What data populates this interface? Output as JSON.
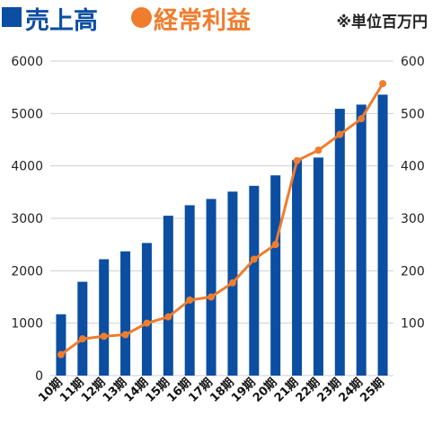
{
  "legend": {
    "sales_label": "売上高",
    "profit_label": "経常利益",
    "unit_note": "※単位百万円"
  },
  "colors": {
    "sales": "#0b4ea2",
    "profit": "#ef7d2d",
    "grid": "#cfcfcf"
  },
  "chart_data": {
    "type": "bar",
    "categories": [
      "10期",
      "11期",
      "12期",
      "13期",
      "14期",
      "15期",
      "16期",
      "17期",
      "18期",
      "19期",
      "20期",
      "21期",
      "22期",
      "23期",
      "24期",
      "25期"
    ],
    "series": [
      {
        "name": "売上高",
        "type": "bar",
        "axis": "left",
        "values": [
          1170,
          1790,
          2220,
          2370,
          2530,
          3050,
          3250,
          3370,
          3510,
          3620,
          3820,
          4110,
          4160,
          5090,
          5170,
          5360
        ]
      },
      {
        "name": "経常利益",
        "type": "line",
        "axis": "right",
        "values": [
          40,
          70,
          75,
          78,
          100,
          112,
          144,
          150,
          177,
          222,
          250,
          410,
          430,
          460,
          490,
          557
        ]
      }
    ],
    "left_axis": {
      "ylim": [
        0,
        6000
      ],
      "ticks": [
        0,
        1000,
        2000,
        3000,
        4000,
        5000,
        6000
      ]
    },
    "right_axis": {
      "ylim": [
        0,
        600
      ],
      "ticks": [
        100,
        200,
        300,
        400,
        500,
        600
      ]
    },
    "grid": true,
    "legend_position": "top"
  }
}
